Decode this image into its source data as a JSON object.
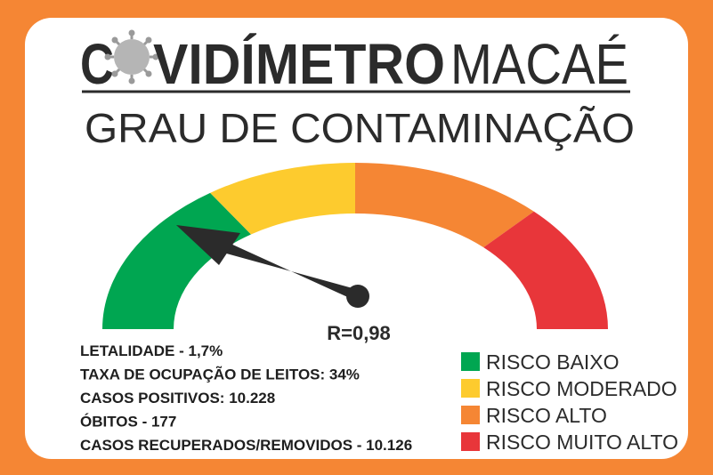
{
  "header": {
    "brand_prefix": "C",
    "brand_rest": "VIDÍMETRO",
    "city": "MACAÉ",
    "subtitle": "GRAU DE CONTAMINAÇÃO"
  },
  "gauge": {
    "reading": "R=0,98"
  },
  "stats": [
    "LETALIDADE - 1,7%",
    "TAXA DE OCUPAÇÃO DE LEITOS: 34%",
    "CASOS POSITIVOS: 10.228",
    "ÓBITOS - 177",
    "CASOS RECUPERADOS/REMOVIDOS - 10.126"
  ],
  "legend": [
    {
      "label": "RISCO BAIXO",
      "color": "#00a651"
    },
    {
      "label": "RISCO MODERADO",
      "color": "#fdcb2e"
    },
    {
      "label": "RISCO ALTO",
      "color": "#f58634"
    },
    {
      "label": "RISCO MUITO ALTO",
      "color": "#e8363a"
    }
  ]
}
